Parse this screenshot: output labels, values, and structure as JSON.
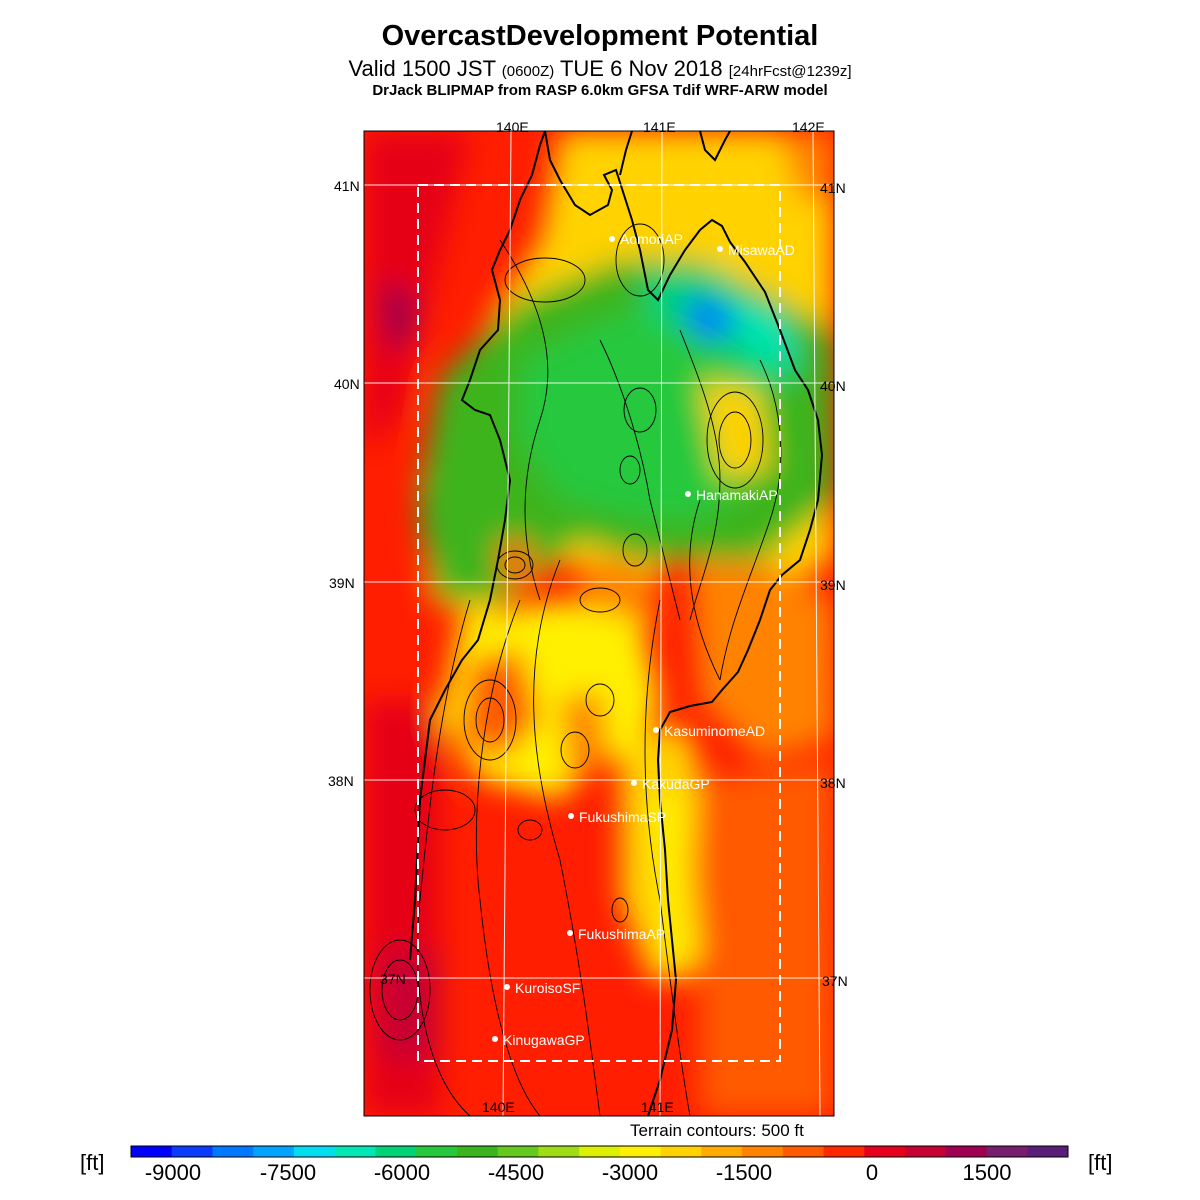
{
  "header": {
    "title": "OvercastDevelopment Potential",
    "valid_prefix": "Valid 1500 JST",
    "valid_zulu": "(0600Z)",
    "valid_date": "TUE 6 Nov 2018",
    "forecast": "[24hrFcst@1239z]",
    "model": "DrJack BLIPMAP from RASP 6.0km GFSA Tdif WRF-ARW model"
  },
  "map": {
    "lon_labels_top": [
      "140E",
      "141E",
      "142E"
    ],
    "lon_labels_bottom": [
      "140E",
      "141E"
    ],
    "lat_labels": [
      "41N",
      "40N",
      "39N",
      "38N",
      "37N"
    ],
    "terrain_note": "Terrain contours: 500 ft",
    "stations": [
      {
        "name": "AomoriAP"
      },
      {
        "name": "MisawaAD"
      },
      {
        "name": "HanamakiAP"
      },
      {
        "name": "KasuminomeAD"
      },
      {
        "name": "KakudaGP"
      },
      {
        "name": "FukushimaSP"
      },
      {
        "name": "FukushimaAP"
      },
      {
        "name": "KuroisoSF"
      },
      {
        "name": "KinugawaGP"
      }
    ]
  },
  "colorbar": {
    "unit": "[ft]",
    "tick_labels": [
      "-9000",
      "-7500",
      "-6000",
      "-4500",
      "-3000",
      "-1500",
      "0",
      "1500"
    ],
    "colors": [
      "#0000ff",
      "#0a3cff",
      "#0078ff",
      "#00a5ff",
      "#00dcf0",
      "#00e6b4",
      "#00d278",
      "#28c83c",
      "#3cb41e",
      "#64c81e",
      "#a0dc14",
      "#dcf000",
      "#fff000",
      "#ffd200",
      "#ffaa00",
      "#ff8200",
      "#ff5a00",
      "#ff2800",
      "#e6001e",
      "#c80032",
      "#a00050",
      "#781e6e",
      "#5a1e78"
    ]
  }
}
